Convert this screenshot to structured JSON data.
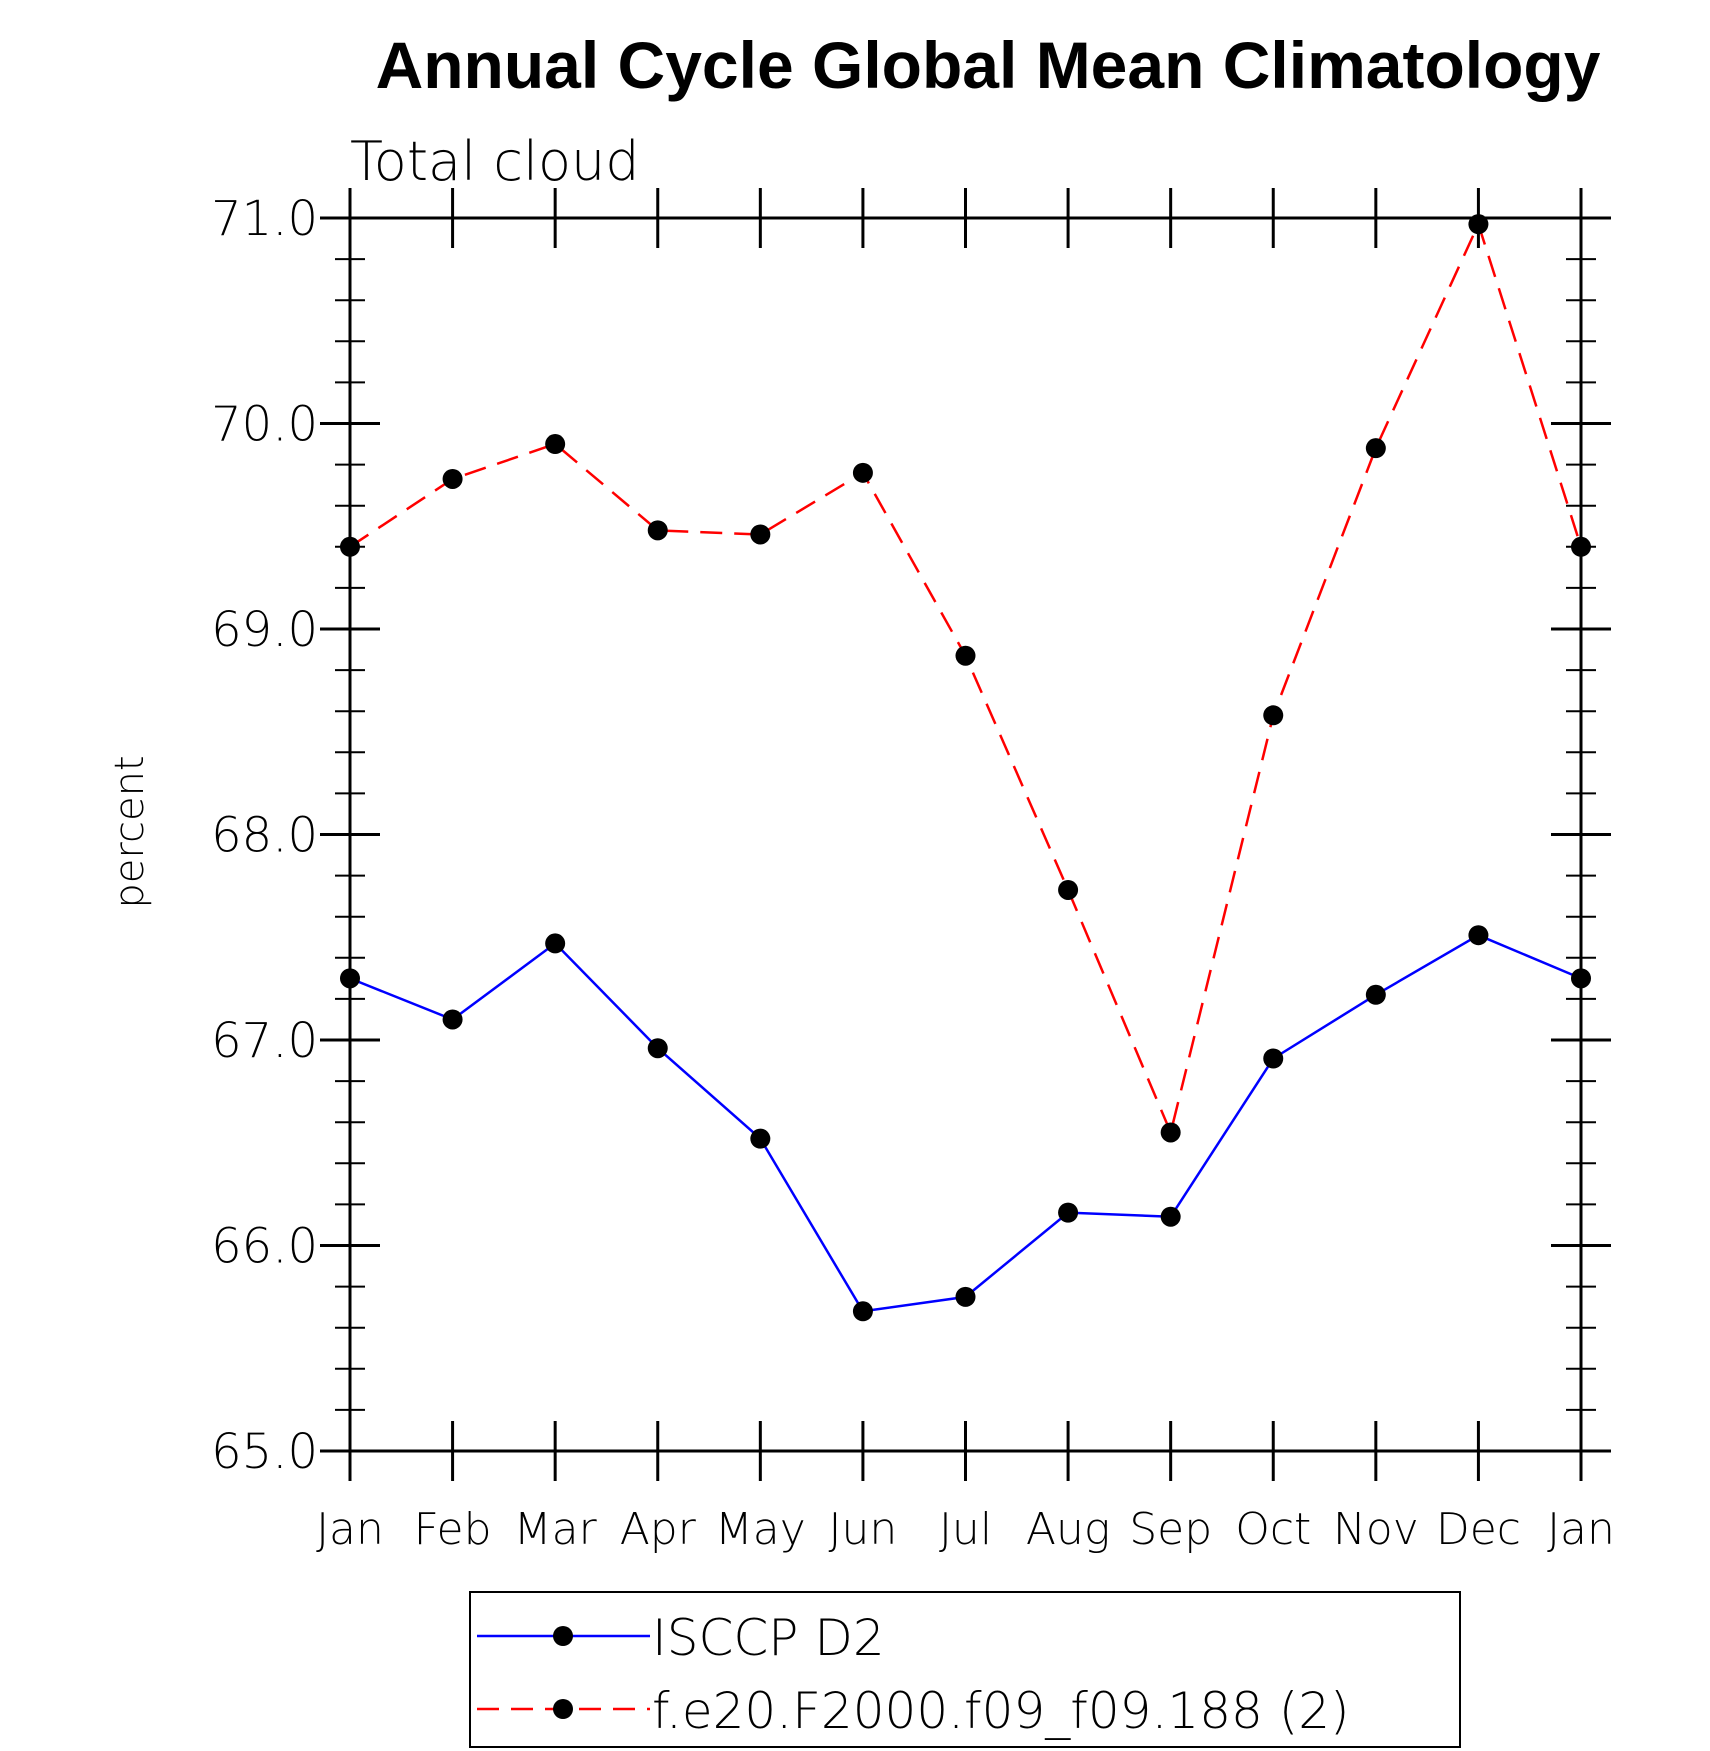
{
  "chart_data": {
    "type": "line",
    "title": "Annual Cycle Global Mean Climatology",
    "subtitle": "Total cloud",
    "xlabel": "",
    "ylabel": "percent",
    "categories": [
      "Jan",
      "Feb",
      "Mar",
      "Apr",
      "May",
      "Jun",
      "Jul",
      "Aug",
      "Sep",
      "Oct",
      "Nov",
      "Dec",
      "Jan"
    ],
    "ylim": [
      65.0,
      71.0
    ],
    "yticks": [
      "65.0",
      "66.0",
      "67.0",
      "68.0",
      "69.0",
      "70.0",
      "71.0"
    ],
    "y_minor_step": 0.2,
    "grid": false,
    "legend_position": "bottom",
    "series": [
      {
        "name": "ISCCP D2",
        "color": "#0000ff",
        "dash": "solid",
        "marker": "filled-circle",
        "values": [
          67.3,
          67.1,
          67.47,
          66.96,
          66.52,
          65.68,
          65.75,
          66.16,
          66.14,
          66.91,
          67.22,
          67.51,
          67.3
        ]
      },
      {
        "name": "f.e20.F2000.f09_f09.188 (2)",
        "color": "#ff0000",
        "dash": "dashed",
        "marker": "filled-circle",
        "values": [
          69.4,
          69.73,
          69.9,
          69.48,
          69.46,
          69.76,
          68.87,
          67.73,
          66.55,
          68.58,
          69.88,
          70.97,
          69.4
        ]
      }
    ]
  }
}
